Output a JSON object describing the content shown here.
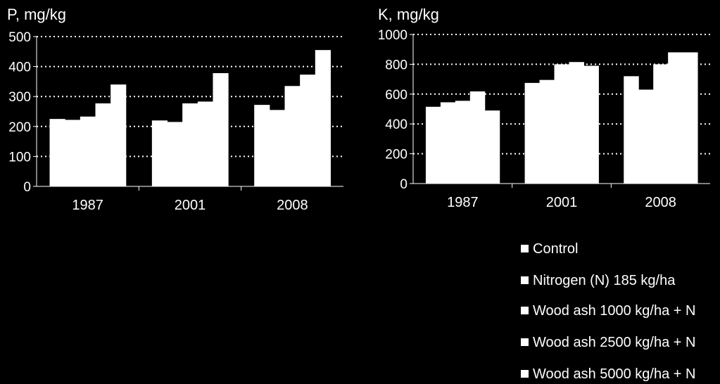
{
  "colors": {
    "background": "#000000",
    "bars": "#ffffff",
    "text": "#ffffff"
  },
  "legend": {
    "items": [
      "Control",
      "Nitrogen (N) 185 kg/ha",
      "Wood ash 1000 kg/ha + N",
      "Wood ash 2500 kg/ha + N",
      "Wood ash 5000 kg/ha + N"
    ]
  },
  "chart_data": [
    {
      "type": "bar",
      "title": "P, mg/kg",
      "categories": [
        "1987",
        "2001",
        "2008"
      ],
      "ylim": [
        0,
        500
      ],
      "yticks": [
        0,
        100,
        200,
        300,
        400,
        500
      ],
      "grid": "dotted horizontal",
      "series": [
        {
          "name": "Control",
          "values": [
            225,
            220,
            272
          ]
        },
        {
          "name": "Nitrogen (N) 185 kg/ha",
          "values": [
            222,
            215,
            255
          ]
        },
        {
          "name": "Wood ash 1000 kg/ha + N",
          "values": [
            233,
            277,
            335
          ]
        },
        {
          "name": "Wood ash 2500 kg/ha + N",
          "values": [
            277,
            283,
            373
          ]
        },
        {
          "name": "Wood ash 5000 kg/ha + N",
          "values": [
            340,
            378,
            455
          ]
        }
      ]
    },
    {
      "type": "bar",
      "title": "K, mg/kg",
      "categories": [
        "1987",
        "2001",
        "2008"
      ],
      "ylim": [
        0,
        1000
      ],
      "yticks": [
        0,
        200,
        400,
        600,
        800,
        1000
      ],
      "grid": "dotted horizontal",
      "series": [
        {
          "name": "Control",
          "values": [
            515,
            675,
            720
          ]
        },
        {
          "name": "Nitrogen (N) 185 kg/ha",
          "values": [
            545,
            695,
            630
          ]
        },
        {
          "name": "Wood ash 1000 kg/ha + N",
          "values": [
            555,
            800,
            800
          ]
        },
        {
          "name": "Wood ash 2500 kg/ha + N",
          "values": [
            618,
            815,
            880
          ]
        },
        {
          "name": "Wood ash 5000 kg/ha + N",
          "values": [
            490,
            790,
            880
          ]
        }
      ]
    }
  ]
}
